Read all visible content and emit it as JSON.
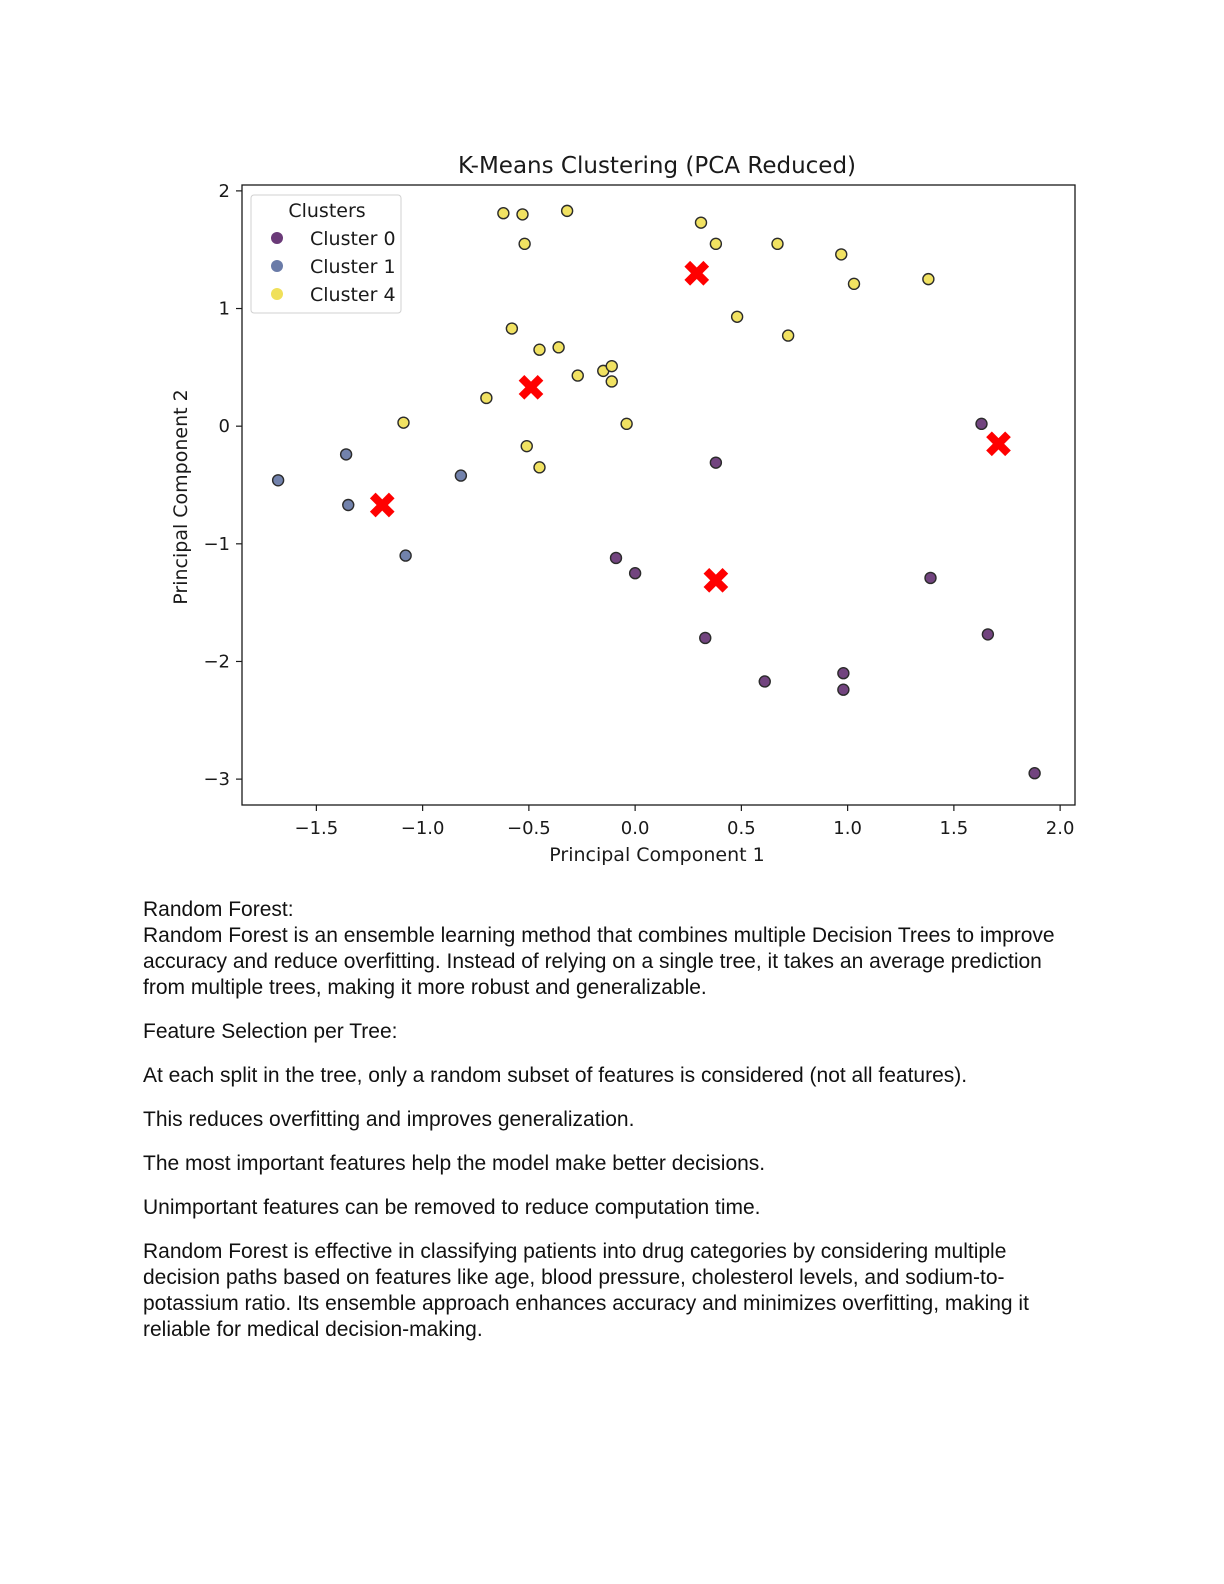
{
  "chart_data": {
    "type": "scatter",
    "title": "K-Means Clustering (PCA Reduced)",
    "xlabel": "Principal Component 1",
    "ylabel": "Principal Component 2",
    "xlim": [
      -1.85,
      2.07
    ],
    "ylim": [
      -3.22,
      2.05
    ],
    "xticks": [
      -1.5,
      -1.0,
      -0.5,
      0.0,
      0.5,
      1.0,
      1.5,
      2.0
    ],
    "xtick_labels": [
      "−1.5",
      "−1.0",
      "−0.5",
      "0.0",
      "0.5",
      "1.0",
      "1.5",
      "2.0"
    ],
    "yticks": [
      -3,
      -2,
      -1,
      0,
      1,
      2
    ],
    "ytick_labels": [
      "−3",
      "−2",
      "−1",
      "0",
      "1",
      "2"
    ],
    "grid": false,
    "legend": {
      "title": "Clusters",
      "placement": "top-left"
    },
    "series": [
      {
        "name": "Cluster 0",
        "color": "#6a3a78",
        "points": [
          [
            1.63,
            0.02
          ],
          [
            0.38,
            -0.31
          ],
          [
            -0.09,
            -1.12
          ],
          [
            0.0,
            -1.25
          ],
          [
            1.39,
            -1.29
          ],
          [
            1.66,
            -1.77
          ],
          [
            0.33,
            -1.8
          ],
          [
            0.61,
            -2.17
          ],
          [
            0.98,
            -2.1
          ],
          [
            0.98,
            -2.24
          ],
          [
            1.88,
            -2.95
          ]
        ]
      },
      {
        "name": "Cluster 1",
        "color": "#6a7ba8",
        "points": [
          [
            -1.68,
            -0.46
          ],
          [
            -1.36,
            -0.24
          ],
          [
            -1.35,
            -0.67
          ],
          [
            -1.08,
            -1.1
          ],
          [
            -0.82,
            -0.42
          ]
        ]
      },
      {
        "name": "Cluster 4",
        "color": "#f0e05a",
        "points": [
          [
            -0.62,
            1.81
          ],
          [
            -0.53,
            1.8
          ],
          [
            -0.32,
            1.83
          ],
          [
            -0.52,
            1.55
          ],
          [
            0.31,
            1.73
          ],
          [
            0.38,
            1.55
          ],
          [
            0.67,
            1.55
          ],
          [
            0.97,
            1.46
          ],
          [
            1.03,
            1.21
          ],
          [
            1.38,
            1.25
          ],
          [
            0.48,
            0.93
          ],
          [
            0.72,
            0.77
          ],
          [
            -0.58,
            0.83
          ],
          [
            -0.45,
            0.65
          ],
          [
            -0.36,
            0.67
          ],
          [
            -0.15,
            0.47
          ],
          [
            -0.11,
            0.51
          ],
          [
            -0.27,
            0.43
          ],
          [
            -0.11,
            0.38
          ],
          [
            -0.7,
            0.24
          ],
          [
            -1.09,
            0.03
          ],
          [
            -0.04,
            0.02
          ],
          [
            -0.51,
            -0.17
          ],
          [
            -0.45,
            -0.35
          ]
        ]
      }
    ],
    "centroids": {
      "color": "#ff0000",
      "marker": "X",
      "points": [
        [
          0.29,
          1.3
        ],
        [
          -0.49,
          0.33
        ],
        [
          -1.19,
          -0.67
        ],
        [
          0.38,
          -1.31
        ],
        [
          1.71,
          -0.15
        ]
      ]
    }
  },
  "document": {
    "heading": "Random Forest:",
    "intro": "Random Forest is an ensemble learning method that combines multiple Decision Trees to improve accuracy and reduce overfitting. Instead of relying on a single tree, it takes an average prediction from multiple trees, making it more robust and generalizable.",
    "feature_heading": "Feature Selection per Tree:",
    "point1": "At each split in the tree, only a random subset of features is considered (not all features).",
    "point2": "This reduces overfitting and improves generalization.",
    "point3": "The most important features help the model make better decisions.",
    "point4": "Unimportant features can be removed to reduce computation time.",
    "conclusion": "Random Forest is effective in classifying patients into drug categories by considering multiple decision paths based on features like age, blood pressure, cholesterol levels, and sodium-to-potassium ratio. Its ensemble approach enhances accuracy and minimizes overfitting, making it reliable for medical decision-making."
  }
}
